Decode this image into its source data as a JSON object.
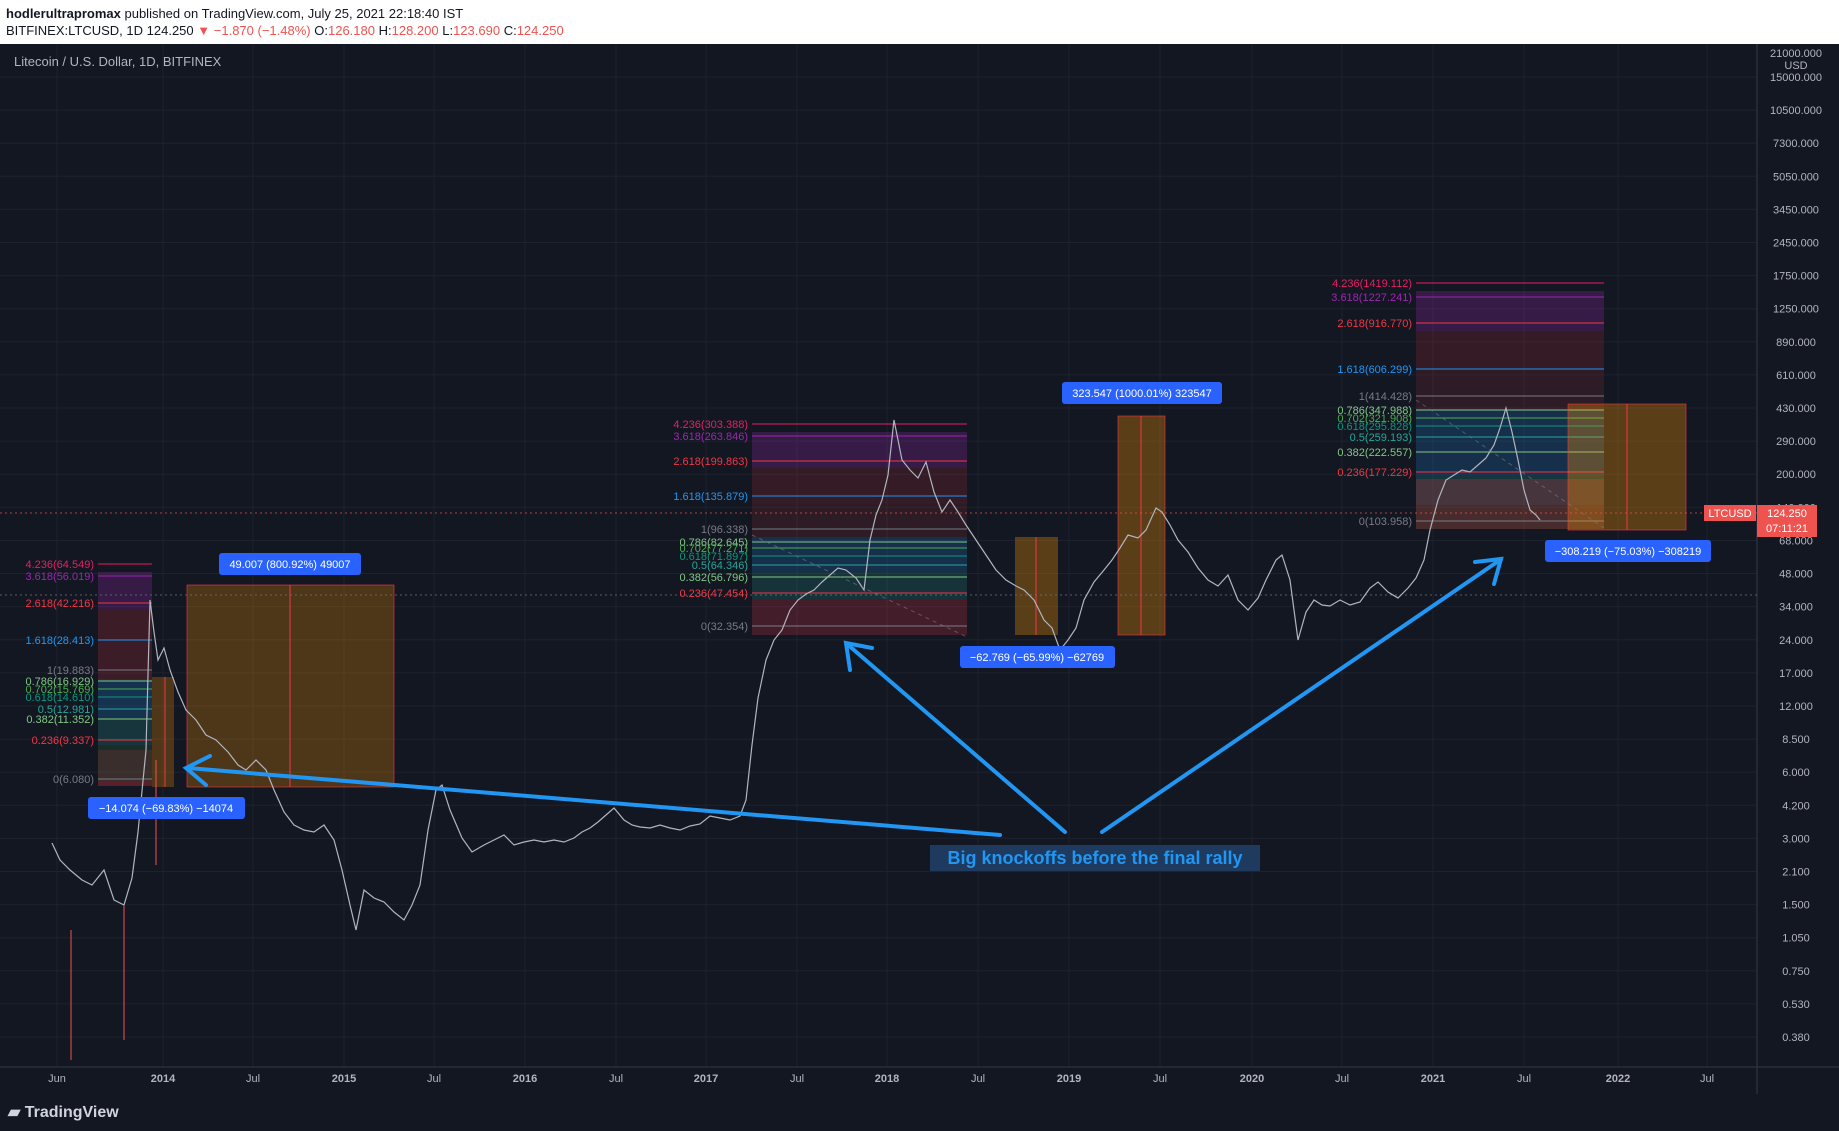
{
  "header": {
    "author": "hodlerultrapromax",
    "published": "published on TradingView.com, July 25, 2021 22:18:40 IST",
    "symbol_line": "BITFINEX:LTCUSD, 1D",
    "last": "124.250",
    "change": "−1.870 (−1.48%)",
    "o_label": "O:",
    "o": "126.180",
    "h_label": "H:",
    "h": "128.200",
    "l_label": "L:",
    "l": "123.690",
    "c_label": "C:",
    "c": "124.250"
  },
  "chart_title": "Litecoin / U.S. Dollar, 1D, BITFINEX",
  "price_axis": {
    "unit": "USD",
    "top": "21000.000",
    "ticks": [
      "15000.000",
      "10500.000",
      "7300.000",
      "5050.000",
      "3450.000",
      "2450.000",
      "1750.000",
      "1250.000",
      "890.000",
      "610.000",
      "430.000",
      "290.000",
      "200.000",
      "140.000",
      "68.000",
      "48.000",
      "34.000",
      "24.000",
      "17.000",
      "12.000",
      "8.500",
      "6.000",
      "4.200",
      "3.000",
      "2.100",
      "1.500",
      "1.050",
      "0.750",
      "0.530",
      "0.380"
    ]
  },
  "time_axis": [
    "Jun",
    "2014",
    "Jul",
    "2015",
    "Jul",
    "2016",
    "Jul",
    "2017",
    "Jul",
    "2018",
    "Jul",
    "2019",
    "Jul",
    "2020",
    "Jul",
    "2021",
    "Jul",
    "2022",
    "Jul"
  ],
  "price_tag": {
    "symbol": "LTCUSD",
    "price": "124.250",
    "countdown": "07:11:21"
  },
  "fib1": [
    {
      "t": "4.236(64.549)",
      "c": "#e91e63"
    },
    {
      "t": "3.618(56.019)",
      "c": "#9c27b0"
    },
    {
      "t": "2.618(42.216)",
      "c": "#f23645"
    },
    {
      "t": "1.618(28.413)",
      "c": "#2196f3"
    },
    {
      "t": "1(19.883)",
      "c": "#787b86"
    },
    {
      "t": "0.786(16.929)",
      "c": "#81c784"
    },
    {
      "t": "0.702(15.769)",
      "c": "#4caf50"
    },
    {
      "t": "0.618(14.610)",
      "c": "#089981"
    },
    {
      "t": "0.5(12.981)",
      "c": "#26a69a"
    },
    {
      "t": "0.382(11.352)",
      "c": "#81c784"
    },
    {
      "t": "0.236(9.337)",
      "c": "#f23645"
    },
    {
      "t": "0(6.080)",
      "c": "#787b86"
    }
  ],
  "fib2": [
    {
      "t": "4.236(303.388)",
      "c": "#e91e63"
    },
    {
      "t": "3.618(263.846)",
      "c": "#9c27b0"
    },
    {
      "t": "2.618(199.863)",
      "c": "#f23645"
    },
    {
      "t": "1.618(135.879)",
      "c": "#2196f3"
    },
    {
      "t": "1(96.338)",
      "c": "#787b86"
    },
    {
      "t": "0.786(82.645)",
      "c": "#81c784"
    },
    {
      "t": "0.702(77.271)",
      "c": "#4caf50"
    },
    {
      "t": "0.618(71.897)",
      "c": "#089981"
    },
    {
      "t": "0.5(64.346)",
      "c": "#26a69a"
    },
    {
      "t": "0.382(56.796)",
      "c": "#81c784"
    },
    {
      "t": "0.236(47.454)",
      "c": "#f23645"
    },
    {
      "t": "0(32.354)",
      "c": "#787b86"
    }
  ],
  "fib3": [
    {
      "t": "4.236(1419.112)",
      "c": "#e91e63"
    },
    {
      "t": "3.618(1227.241)",
      "c": "#9c27b0"
    },
    {
      "t": "2.618(916.770)",
      "c": "#f23645"
    },
    {
      "t": "1.618(606.299)",
      "c": "#2196f3"
    },
    {
      "t": "1(414.428)",
      "c": "#787b86"
    },
    {
      "t": "0.786(347.988)",
      "c": "#81c784"
    },
    {
      "t": "0.702(321.908)",
      "c": "#4caf50"
    },
    {
      "t": "0.618(295.828)",
      "c": "#089981"
    },
    {
      "t": "0.5(259.193)",
      "c": "#26a69a"
    },
    {
      "t": "0.382(222.557)",
      "c": "#81c784"
    },
    {
      "t": "0.236(177.229)",
      "c": "#f23645"
    },
    {
      "t": "0(103.958)",
      "c": "#787b86"
    }
  ],
  "measures": {
    "m1": "49.007 (800.92%) 49007",
    "m2": "−14.074 (−69.83%) −14074",
    "m3": "323.547 (1000.01%) 323547",
    "m4": "−62.769 (−65.99%) −62769",
    "m5": "−308.219 (−75.03%) −308219"
  },
  "annotation": "Big knockoffs before the final rally",
  "logo": "TradingView",
  "colors": {
    "bg": "#131722",
    "up": "#26a69a",
    "down": "#ef5350",
    "accent": "#2196f3"
  }
}
